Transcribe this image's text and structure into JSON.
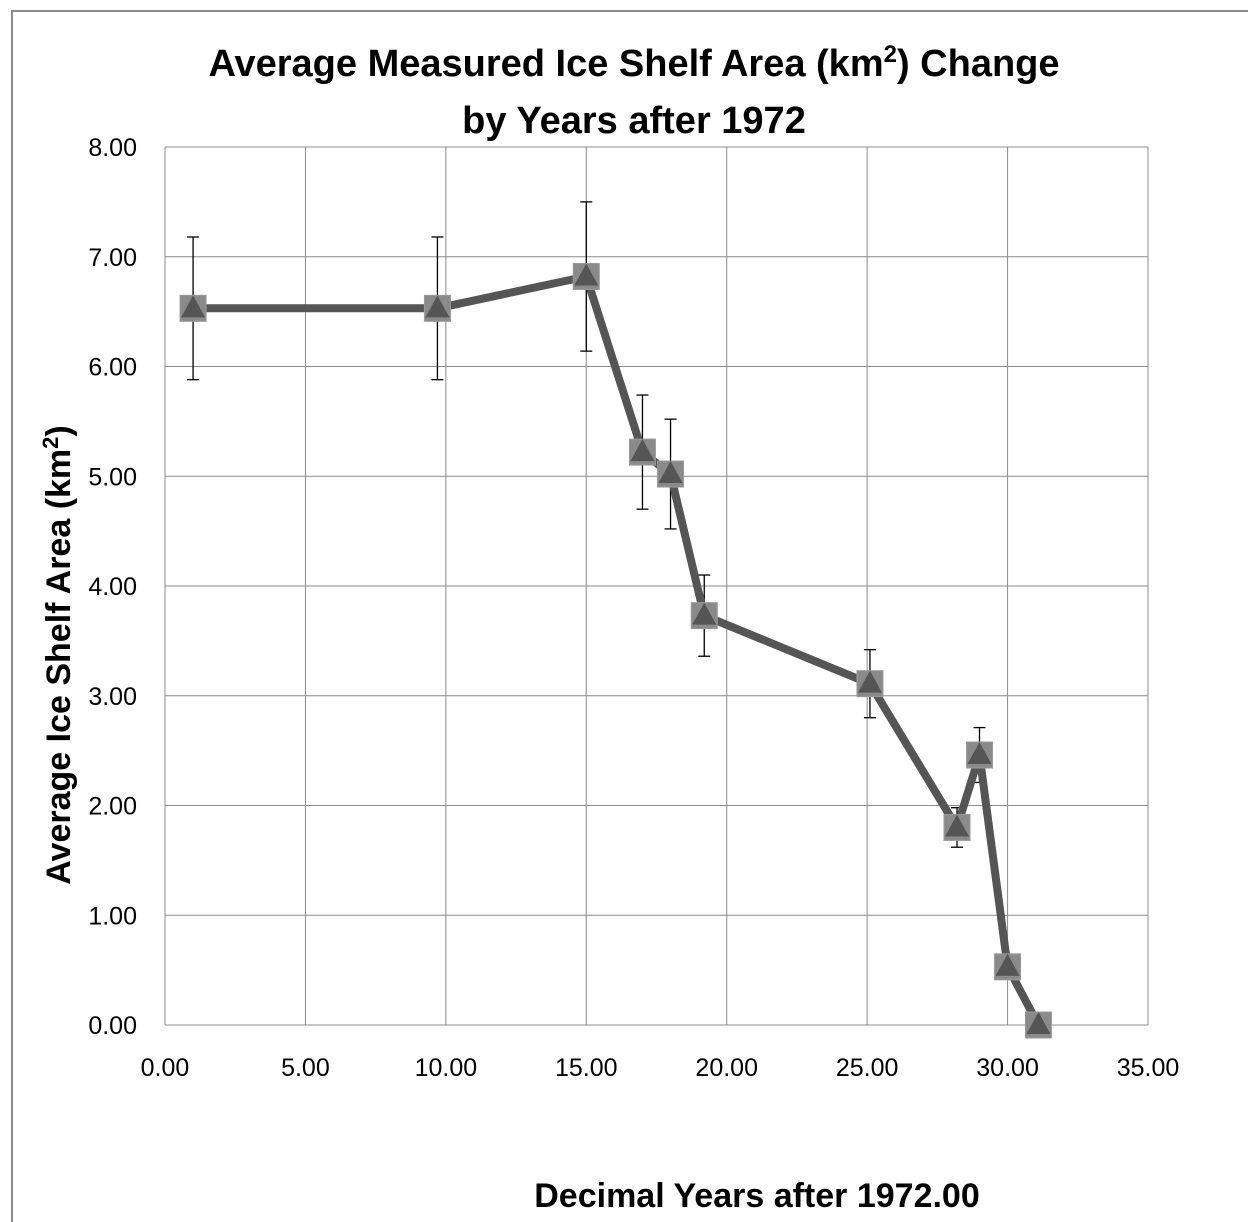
{
  "chart_data": {
    "type": "line",
    "title_line1_pre": "Average Measured Ice Shelf Area (km",
    "title_sup": "2",
    "title_line1_post": ") Change",
    "title_line2": "by Years after 1972",
    "xlabel": "Decimal Years after 1972.00",
    "ylabel_pre": "Average Ice Shelf Area (km",
    "ylabel_sup": "2",
    "ylabel_post": ")",
    "xlim": [
      0,
      35
    ],
    "ylim": [
      0,
      8
    ],
    "x_ticks": [
      "0.00",
      "5.00",
      "10.00",
      "15.00",
      "20.00",
      "25.00",
      "30.00",
      "35.00"
    ],
    "y_ticks": [
      "0.00",
      "1.00",
      "2.00",
      "3.00",
      "4.00",
      "5.00",
      "6.00",
      "7.00",
      "8.00"
    ],
    "grid": true,
    "series": [
      {
        "x": [
          1.0,
          9.7,
          15.0,
          17.0,
          18.0,
          19.2,
          25.1,
          28.2,
          29.0,
          30.0,
          31.1
        ],
        "y": [
          6.53,
          6.53,
          6.82,
          5.22,
          5.02,
          3.73,
          3.11,
          1.8,
          2.46,
          0.53,
          0.0
        ],
        "error": [
          0.65,
          0.65,
          0.68,
          0.52,
          0.5,
          0.37,
          0.31,
          0.18,
          0.25,
          0.05,
          0.0
        ]
      }
    ],
    "line_color": "#555555",
    "marker_color": "#8a8a8a"
  }
}
